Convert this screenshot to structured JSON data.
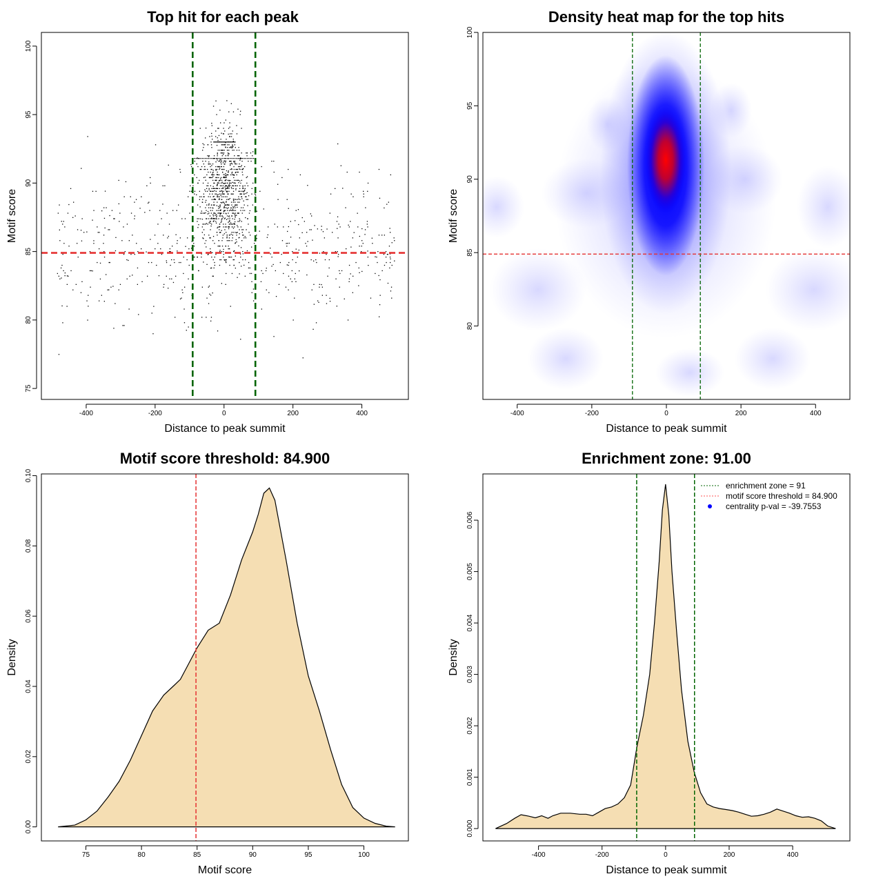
{
  "chart_data": [
    {
      "type": "scatter",
      "title": "Top hit for each peak",
      "xlabel": "Distance to peak summit",
      "ylabel": "Motif score",
      "xlim": [
        -530,
        535
      ],
      "ylim": [
        74.2,
        101
      ],
      "xticks": [
        -400,
        -200,
        0,
        200,
        400
      ],
      "yticks": [
        75,
        80,
        85,
        90,
        95,
        100
      ],
      "xtick_labels": [
        "-400",
        "-200",
        "0",
        "200",
        "400"
      ],
      "ytick_labels": [
        "75",
        "80",
        "85",
        "90",
        "95",
        "100"
      ],
      "vlines": [
        -91,
        91
      ],
      "hline": 84.9,
      "vline_color": "#006400",
      "hline_color": "#e53030",
      "n_points_approx": 1500,
      "point_color": "#000000"
    },
    {
      "type": "heatmap",
      "title": "Density heat map for the top hits",
      "xlabel": "Distance to peak summit",
      "ylabel": "Motif score",
      "xlim": [
        -492,
        492
      ],
      "ylim": [
        75,
        100
      ],
      "xticks": [
        -400,
        -200,
        0,
        200,
        400
      ],
      "yticks": [
        80,
        85,
        90,
        95,
        100
      ],
      "xtick_labels": [
        "-400",
        "-200",
        "0",
        "200",
        "400"
      ],
      "ytick_labels": [
        "80",
        "85",
        "90",
        "95",
        "100"
      ],
      "vlines": [
        -91,
        91
      ],
      "hline": 84.9,
      "peak": {
        "x": 0,
        "y": 91.5
      },
      "colors": [
        "#ffffff",
        "#0000ff",
        "#ff0000"
      ]
    },
    {
      "type": "area",
      "title": "Motif score threshold: 84.900",
      "xlabel": "Motif score",
      "ylabel": "Density",
      "xlim": [
        71.0,
        104.0
      ],
      "ylim": [
        -0.004,
        0.1005
      ],
      "xticks": [
        75,
        80,
        85,
        90,
        95,
        100
      ],
      "yticks": [
        0.0,
        0.02,
        0.04,
        0.06,
        0.08,
        0.1
      ],
      "xtick_labels": [
        "75",
        "80",
        "85",
        "90",
        "95",
        "100"
      ],
      "ytick_labels": [
        "0.00",
        "0.02",
        "0.04",
        "0.06",
        "0.08",
        "0.10"
      ],
      "vline": 84.9,
      "fill_color": "#f5deb3",
      "x": [
        72.5,
        74,
        75,
        76,
        77,
        78,
        79,
        80,
        81,
        82,
        83,
        83.5,
        84,
        85,
        86,
        87,
        88,
        89,
        90,
        90.5,
        91,
        91.5,
        92,
        93,
        94,
        95,
        96,
        97,
        98,
        99,
        100,
        101,
        102,
        102.8
      ],
      "y": [
        0.0,
        0.0005,
        0.002,
        0.0045,
        0.0085,
        0.013,
        0.019,
        0.026,
        0.033,
        0.0375,
        0.0405,
        0.042,
        0.045,
        0.051,
        0.056,
        0.058,
        0.066,
        0.076,
        0.084,
        0.089,
        0.095,
        0.0965,
        0.093,
        0.076,
        0.058,
        0.043,
        0.033,
        0.022,
        0.012,
        0.0055,
        0.0025,
        0.001,
        0.0002,
        0.0
      ]
    },
    {
      "type": "area",
      "title": "Enrichment zone: 91.00",
      "xlabel": "Distance to peak summit",
      "ylabel": "Density",
      "xlim": [
        -575,
        580
      ],
      "ylim": [
        -0.00024,
        0.0069
      ],
      "xticks": [
        -400,
        -200,
        0,
        200,
        400
      ],
      "yticks": [
        0.0,
        0.001,
        0.002,
        0.003,
        0.004,
        0.005,
        0.006
      ],
      "xtick_labels": [
        "-400",
        "-200",
        "0",
        "200",
        "400"
      ],
      "ytick_labels": [
        "0.000",
        "0.001",
        "0.002",
        "0.003",
        "0.004",
        "0.005",
        "0.006"
      ],
      "vlines": [
        -91,
        91
      ],
      "fill_color": "#f5deb3",
      "legend": [
        {
          "label": "enrichment zone = 91",
          "kind": "line",
          "color": "#006400"
        },
        {
          "label": "motif score threshold = 84.900",
          "kind": "line",
          "color": "#ff5050"
        },
        {
          "label": "centrality p-val = -39.7553",
          "kind": "point",
          "color": "#0000ff"
        }
      ],
      "legend_position": "top-right",
      "x": [
        -535,
        -500,
        -475,
        -455,
        -430,
        -410,
        -390,
        -370,
        -355,
        -330,
        -300,
        -270,
        -250,
        -230,
        -210,
        -190,
        -170,
        -150,
        -130,
        -110,
        -90,
        -70,
        -50,
        -35,
        -20,
        -10,
        0,
        10,
        20,
        35,
        50,
        70,
        90,
        110,
        130,
        150,
        170,
        190,
        210,
        230,
        250,
        270,
        290,
        310,
        330,
        350,
        370,
        390,
        410,
        430,
        450,
        470,
        490,
        510,
        535
      ],
      "y": [
        0.0,
        0.0001,
        0.0002,
        0.00027,
        0.00024,
        0.00021,
        0.00025,
        0.0002,
        0.00025,
        0.0003,
        0.0003,
        0.00028,
        0.00028,
        0.00025,
        0.00032,
        0.00039,
        0.00042,
        0.00048,
        0.0006,
        0.00085,
        0.0016,
        0.0022,
        0.003,
        0.004,
        0.0052,
        0.0062,
        0.0067,
        0.0061,
        0.005,
        0.0038,
        0.0027,
        0.0017,
        0.0011,
        0.0007,
        0.00048,
        0.00042,
        0.00039,
        0.00037,
        0.00035,
        0.00032,
        0.00028,
        0.00024,
        0.00025,
        0.00028,
        0.00032,
        0.00038,
        0.00034,
        0.0003,
        0.00025,
        0.00022,
        0.00023,
        0.0002,
        0.00015,
        5e-05,
        0.0
      ]
    }
  ]
}
